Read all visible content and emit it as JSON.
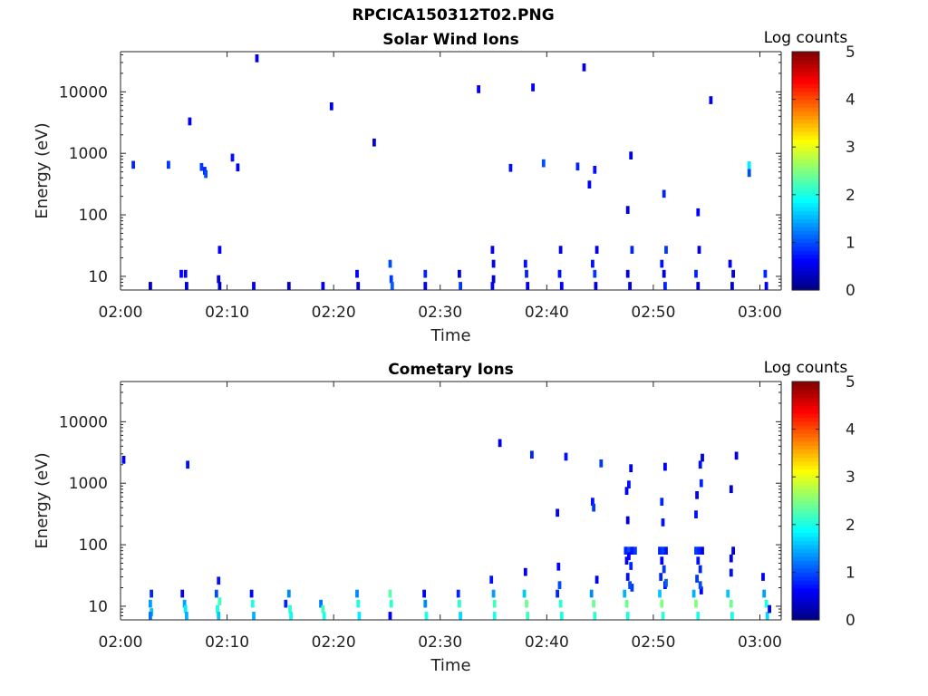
{
  "figure": {
    "title": "RPCICA150312T02.PNG"
  },
  "chart_data": [
    {
      "type": "heatmap",
      "title": "Solar Wind Ions",
      "xlabel": "Time",
      "ylabel": "Energy (eV)",
      "x_ticks": [
        "02:00",
        "02:10",
        "02:20",
        "02:30",
        "02:40",
        "02:50",
        "03:00"
      ],
      "y_ticks": [
        "10",
        "100",
        "1000",
        "10000"
      ],
      "y_scale": "log",
      "ylim": [
        6,
        45000
      ],
      "xlim_minutes": [
        0,
        62
      ],
      "colorbar": {
        "label": "Log counts",
        "ticks": [
          "0",
          "1",
          "2",
          "3",
          "4",
          "5"
        ],
        "range": [
          0,
          5
        ],
        "colormap": "jet"
      },
      "cells": [
        [
          1.2,
          650,
          0.8
        ],
        [
          4.5,
          650,
          0.9
        ],
        [
          6.5,
          3300,
          0.6
        ],
        [
          7.6,
          600,
          0.9
        ],
        [
          7.9,
          520,
          0.8
        ],
        [
          8.0,
          460,
          1.0
        ],
        [
          10.5,
          850,
          0.7
        ],
        [
          11.0,
          590,
          0.6
        ],
        [
          12.8,
          35000,
          0.5
        ],
        [
          19.8,
          5800,
          0.5
        ],
        [
          23.8,
          1500,
          0.5
        ],
        [
          33.6,
          11000,
          0.6
        ],
        [
          36.6,
          580,
          0.7
        ],
        [
          38.7,
          11800,
          0.6
        ],
        [
          39.7,
          690,
          1.0
        ],
        [
          42.9,
          610,
          0.8
        ],
        [
          43.5,
          25000,
          0.5
        ],
        [
          44.0,
          310,
          0.6
        ],
        [
          44.5,
          540,
          0.7
        ],
        [
          47.6,
          120,
          0.5
        ],
        [
          47.9,
          920,
          0.5
        ],
        [
          51.0,
          220,
          0.8
        ],
        [
          54.2,
          110,
          0.6
        ],
        [
          55.4,
          7300,
          0.5
        ],
        [
          59.0,
          640,
          1.8
        ],
        [
          59.0,
          480,
          1.0
        ],
        [
          2.8,
          7,
          0.3
        ],
        [
          5.7,
          11,
          0.6
        ],
        [
          6.1,
          11,
          0.6
        ],
        [
          6.2,
          7,
          0.4
        ],
        [
          9.2,
          9,
          0.5
        ],
        [
          9.3,
          27,
          0.6
        ],
        [
          9.3,
          7,
          0.3
        ],
        [
          12.5,
          7,
          0.5
        ],
        [
          15.8,
          7,
          0.4
        ],
        [
          19.0,
          7,
          0.5
        ],
        [
          22.2,
          11,
          0.6
        ],
        [
          22.3,
          7,
          0.5
        ],
        [
          25.3,
          16,
          1.0
        ],
        [
          25.4,
          9,
          0.9
        ],
        [
          25.5,
          7,
          1.1
        ],
        [
          28.6,
          11,
          0.8
        ],
        [
          28.6,
          7,
          0.6
        ],
        [
          31.8,
          11,
          0.5
        ],
        [
          31.9,
          7,
          0.9
        ],
        [
          34.9,
          27,
          0.6
        ],
        [
          35.0,
          16,
          0.5
        ],
        [
          35.0,
          9,
          0.4
        ],
        [
          34.9,
          7,
          0.6
        ],
        [
          38.0,
          16,
          0.7
        ],
        [
          38.1,
          11,
          0.8
        ],
        [
          38.2,
          7,
          0.5
        ],
        [
          41.3,
          27,
          0.5
        ],
        [
          41.2,
          11,
          0.7
        ],
        [
          41.4,
          7,
          0.6
        ],
        [
          44.3,
          16,
          0.7
        ],
        [
          44.5,
          11,
          0.9
        ],
        [
          44.7,
          27,
          0.6
        ],
        [
          44.6,
          7,
          0.5
        ],
        [
          47.6,
          11,
          0.5
        ],
        [
          47.8,
          7,
          0.6
        ],
        [
          48.0,
          27,
          0.8
        ],
        [
          50.8,
          16,
          0.7
        ],
        [
          51.0,
          11,
          0.5
        ],
        [
          51.2,
          27,
          0.9
        ],
        [
          51.1,
          7,
          0.8
        ],
        [
          54.0,
          11,
          0.8
        ],
        [
          54.3,
          27,
          0.5
        ],
        [
          54.2,
          7,
          0.4
        ],
        [
          57.2,
          16,
          0.6
        ],
        [
          57.5,
          11,
          0.5
        ],
        [
          57.4,
          7,
          0.4
        ],
        [
          60.5,
          11,
          0.8
        ],
        [
          60.6,
          7,
          0.6
        ]
      ]
    },
    {
      "type": "heatmap",
      "title": "Cometary Ions",
      "xlabel": "Time",
      "ylabel": "Energy (eV)",
      "x_ticks": [
        "02:00",
        "02:10",
        "02:20",
        "02:30",
        "02:40",
        "02:50",
        "03:00"
      ],
      "y_ticks": [
        "10",
        "100",
        "1000",
        "10000"
      ],
      "y_scale": "log",
      "ylim": [
        6,
        45000
      ],
      "xlim_minutes": [
        0,
        62
      ],
      "colorbar": {
        "label": "Log counts",
        "ticks": [
          "0",
          "1",
          "2",
          "3",
          "4",
          "5"
        ],
        "range": [
          0,
          5
        ],
        "colormap": "jet"
      },
      "cells": [
        [
          0.3,
          2400,
          0.6
        ],
        [
          6.3,
          2000,
          0.7
        ],
        [
          35.6,
          4500,
          0.5
        ],
        [
          38.6,
          2900,
          0.8
        ],
        [
          41.8,
          2700,
          0.7
        ],
        [
          45.1,
          2100,
          0.9
        ],
        [
          47.9,
          1750,
          0.5
        ],
        [
          51.1,
          1850,
          0.6
        ],
        [
          54.4,
          2000,
          0.7
        ],
        [
          54.6,
          2600,
          0.5
        ],
        [
          57.8,
          2800,
          0.5
        ],
        [
          41.0,
          330,
          0.6
        ],
        [
          44.3,
          500,
          0.7
        ],
        [
          44.4,
          400,
          0.9
        ],
        [
          47.5,
          750,
          0.6
        ],
        [
          47.7,
          950,
          0.7
        ],
        [
          47.6,
          250,
          0.5
        ],
        [
          50.8,
          500,
          0.8
        ],
        [
          50.9,
          230,
          0.7
        ],
        [
          54.1,
          640,
          0.6
        ],
        [
          54.5,
          1000,
          0.8
        ],
        [
          54.0,
          310,
          0.7
        ],
        [
          57.3,
          800,
          0.5
        ],
        [
          47.4,
          80,
          0.8
        ],
        [
          47.7,
          80,
          1.0
        ],
        [
          48.0,
          80,
          0.7
        ],
        [
          48.3,
          80,
          0.9
        ],
        [
          47.5,
          55,
          0.6
        ],
        [
          47.9,
          45,
          0.8
        ],
        [
          47.6,
          30,
          0.7
        ],
        [
          48.0,
          20,
          0.9
        ],
        [
          47.7,
          65,
          0.6
        ],
        [
          50.6,
          80,
          0.8
        ],
        [
          50.9,
          80,
          0.9
        ],
        [
          51.2,
          80,
          0.7
        ],
        [
          50.8,
          55,
          0.6
        ],
        [
          51.0,
          40,
          0.9
        ],
        [
          50.7,
          30,
          0.8
        ],
        [
          51.1,
          22,
          0.7
        ],
        [
          54.0,
          80,
          0.9
        ],
        [
          54.3,
          80,
          0.8
        ],
        [
          54.6,
          80,
          0.6
        ],
        [
          54.2,
          55,
          0.7
        ],
        [
          54.4,
          40,
          0.8
        ],
        [
          54.1,
          28,
          0.9
        ],
        [
          54.5,
          18,
          0.6
        ],
        [
          57.3,
          60,
          0.6
        ],
        [
          57.3,
          35,
          0.7
        ],
        [
          57.5,
          80,
          0.5
        ],
        [
          2.9,
          16,
          0.8
        ],
        [
          2.8,
          11,
          1.4
        ],
        [
          2.9,
          8,
          1.6
        ],
        [
          2.8,
          7,
          1.2
        ],
        [
          5.8,
          16,
          0.6
        ],
        [
          6.0,
          11,
          1.4
        ],
        [
          6.1,
          9,
          1.8
        ],
        [
          6.2,
          7,
          1.5
        ],
        [
          9.0,
          16,
          1.0
        ],
        [
          9.2,
          26,
          0.7
        ],
        [
          9.3,
          12,
          2.2
        ],
        [
          9.1,
          9,
          2.0
        ],
        [
          9.2,
          7,
          1.6
        ],
        [
          12.3,
          16,
          0.6
        ],
        [
          12.4,
          11,
          2.0
        ],
        [
          12.5,
          7,
          1.5
        ],
        [
          15.5,
          11,
          0.8
        ],
        [
          15.8,
          16,
          1.3
        ],
        [
          15.9,
          9,
          2.1
        ],
        [
          16.0,
          7,
          1.9
        ],
        [
          18.8,
          11,
          1.2
        ],
        [
          19.0,
          9,
          2.2
        ],
        [
          19.1,
          7,
          2.0
        ],
        [
          22.2,
          16,
          1.3
        ],
        [
          22.3,
          11,
          2.0
        ],
        [
          22.4,
          7,
          1.8
        ],
        [
          25.3,
          16,
          2.3
        ],
        [
          25.4,
          11,
          2.1
        ],
        [
          25.3,
          7,
          0.6
        ],
        [
          28.5,
          16,
          0.6
        ],
        [
          28.6,
          11,
          1.3
        ],
        [
          28.7,
          7,
          2.0
        ],
        [
          31.7,
          16,
          0.8
        ],
        [
          31.8,
          11,
          2.1
        ],
        [
          31.9,
          7,
          1.7
        ],
        [
          34.8,
          27,
          0.7
        ],
        [
          35.0,
          16,
          1.4
        ],
        [
          35.1,
          11,
          2.2
        ],
        [
          35.1,
          7,
          2.0
        ],
        [
          37.9,
          16,
          1.6
        ],
        [
          38.1,
          11,
          2.4
        ],
        [
          38.2,
          7,
          2.2
        ],
        [
          38.0,
          36,
          0.5
        ],
        [
          41.1,
          44,
          0.6
        ],
        [
          41.0,
          16,
          0.8
        ],
        [
          41.2,
          22,
          1.0
        ],
        [
          41.3,
          11,
          2.1
        ],
        [
          41.4,
          7,
          2.0
        ],
        [
          44.2,
          16,
          1.3
        ],
        [
          44.4,
          11,
          2.4
        ],
        [
          44.5,
          7,
          2.1
        ],
        [
          44.7,
          27,
          0.6
        ],
        [
          47.3,
          16,
          1.5
        ],
        [
          47.5,
          11,
          2.4
        ],
        [
          47.6,
          7,
          2.0
        ],
        [
          47.8,
          22,
          1.0
        ],
        [
          50.6,
          16,
          1.6
        ],
        [
          50.8,
          11,
          2.5
        ],
        [
          50.9,
          7,
          2.1
        ],
        [
          51.2,
          24,
          1.1
        ],
        [
          53.8,
          16,
          1.5
        ],
        [
          54.0,
          11,
          2.5
        ],
        [
          54.2,
          7,
          2.0
        ],
        [
          54.4,
          22,
          1.0
        ],
        [
          57.0,
          16,
          1.6
        ],
        [
          57.3,
          11,
          2.4
        ],
        [
          57.4,
          7,
          2.0
        ],
        [
          60.3,
          30,
          0.6
        ],
        [
          60.4,
          16,
          1.4
        ],
        [
          60.6,
          11,
          2.0
        ],
        [
          60.7,
          7,
          1.7
        ],
        [
          60.9,
          9,
          0.6
        ]
      ]
    }
  ]
}
